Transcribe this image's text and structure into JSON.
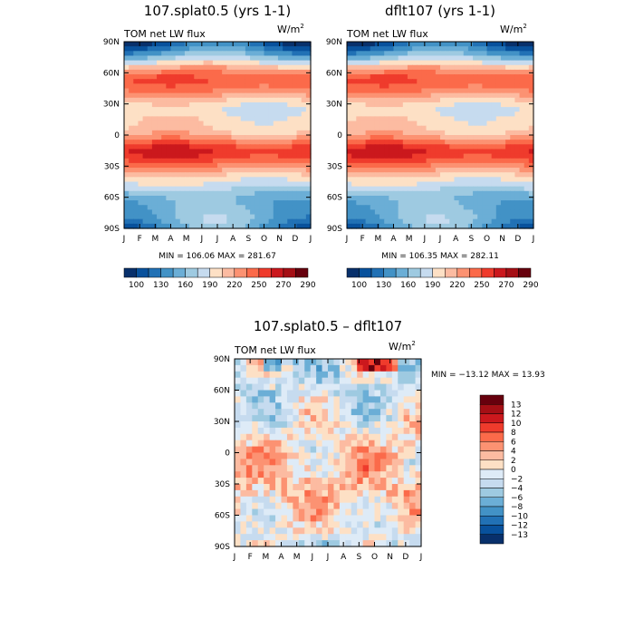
{
  "chart_data": [
    {
      "type": "heatmap",
      "title": "107.splat0.5 (yrs 1-1)",
      "subtitle": "TOM net LW flux",
      "units": "W/m",
      "units_sup": "2",
      "x_ticks": [
        "J",
        "F",
        "M",
        "A",
        "M",
        "J",
        "J",
        "A",
        "S",
        "O",
        "N",
        "D",
        "J"
      ],
      "y_ticks": [
        "90N",
        "60N",
        "30N",
        "0",
        "30S",
        "60S",
        "90S"
      ],
      "stats": "MIN = 106.06 MAX = 281.67",
      "colorbar_labels": [
        "100",
        "130",
        "160",
        "190",
        "220",
        "250",
        "270",
        "290"
      ],
      "value_range": [
        106.06,
        281.67
      ]
    },
    {
      "type": "heatmap",
      "title": "dflt107 (yrs 1-1)",
      "subtitle": "TOM net LW flux",
      "units": "W/m",
      "units_sup": "2",
      "x_ticks": [
        "J",
        "F",
        "M",
        "A",
        "M",
        "J",
        "J",
        "A",
        "S",
        "O",
        "N",
        "D",
        "J"
      ],
      "y_ticks": [
        "90N",
        "60N",
        "30N",
        "0",
        "30S",
        "60S",
        "90S"
      ],
      "stats": "MIN = 106.35 MAX = 282.11",
      "colorbar_labels": [
        "100",
        "130",
        "160",
        "190",
        "220",
        "250",
        "270",
        "290"
      ],
      "value_range": [
        106.35,
        282.11
      ]
    },
    {
      "type": "heatmap",
      "title": "107.splat0.5 – dflt107",
      "subtitle": "TOM net LW flux",
      "units": "W/m",
      "units_sup": "2",
      "x_ticks": [
        "J",
        "F",
        "M",
        "A",
        "M",
        "J",
        "J",
        "A",
        "S",
        "O",
        "N",
        "D",
        "J"
      ],
      "y_ticks": [
        "90N",
        "60N",
        "30N",
        "0",
        "30S",
        "60S",
        "90S"
      ],
      "stats": "MIN = −13.12 MAX =  13.93",
      "colorbar_labels": [
        "13",
        "12",
        "10",
        "8",
        "6",
        "4",
        "2",
        "0",
        "−2",
        "−4",
        "−6",
        "−8",
        "−10",
        "−12",
        "−13"
      ],
      "value_range": [
        -13.12,
        13.93
      ]
    }
  ],
  "colors": {
    "main_scale": [
      "#08306b",
      "#08519c",
      "#2171b5",
      "#4292c6",
      "#6baed6",
      "#9ecae1",
      "#c6dbef",
      "#fde0c5",
      "#fcbba1",
      "#fc9272",
      "#fb6a4a",
      "#ef3b2c",
      "#cb181d",
      "#a50f15",
      "#67000d"
    ],
    "diff_scale": [
      "#67000d",
      "#a50f15",
      "#cb181d",
      "#ef3b2c",
      "#fb6a4a",
      "#fc9272",
      "#fcbba1",
      "#fde0c5",
      "#deebf7",
      "#c6dbef",
      "#9ecae1",
      "#6baed6",
      "#4292c6",
      "#2171b5",
      "#08519c",
      "#08306b"
    ]
  }
}
